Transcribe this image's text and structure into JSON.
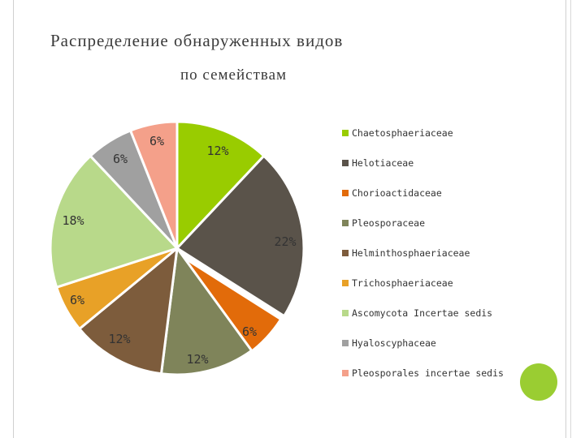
{
  "title_line1": "Распределение обнаруженных видов",
  "title_line2": "по семействам",
  "chart_data": {
    "type": "pie",
    "title": "Распределение обнаруженных видов по семействам",
    "legend_position": "right",
    "slices": [
      {
        "name": "Chaetosphaeriaceae",
        "value": 12,
        "label": "12%",
        "color": "#99cc00"
      },
      {
        "name": "Helotiaceae",
        "value": 22,
        "label": "22%",
        "color": "#5a534a"
      },
      {
        "name": "Chorioactidaceae",
        "value": 6,
        "label": "6%",
        "color": "#e26b0a"
      },
      {
        "name": "Pleosporaceae",
        "value": 12,
        "label": "12%",
        "color": "#7f845a"
      },
      {
        "name": "Helminthosphaeriaceae",
        "value": 12,
        "label": "12%",
        "color": "#7d5c3c"
      },
      {
        "name": "Trichosphaeriaceae",
        "value": 6,
        "label": "6%",
        "color": "#e8a127"
      },
      {
        "name": "Ascomycota Incertae sedis",
        "value": 18,
        "label": "18%",
        "color": "#b8d98a"
      },
      {
        "name": "Hyaloscyphaceae",
        "value": 6,
        "label": "6%",
        "color": "#a0a0a0"
      },
      {
        "name": "Pleosporales incertae sedis",
        "value": 6,
        "label": "6%",
        "color": "#f4a08a"
      }
    ]
  }
}
